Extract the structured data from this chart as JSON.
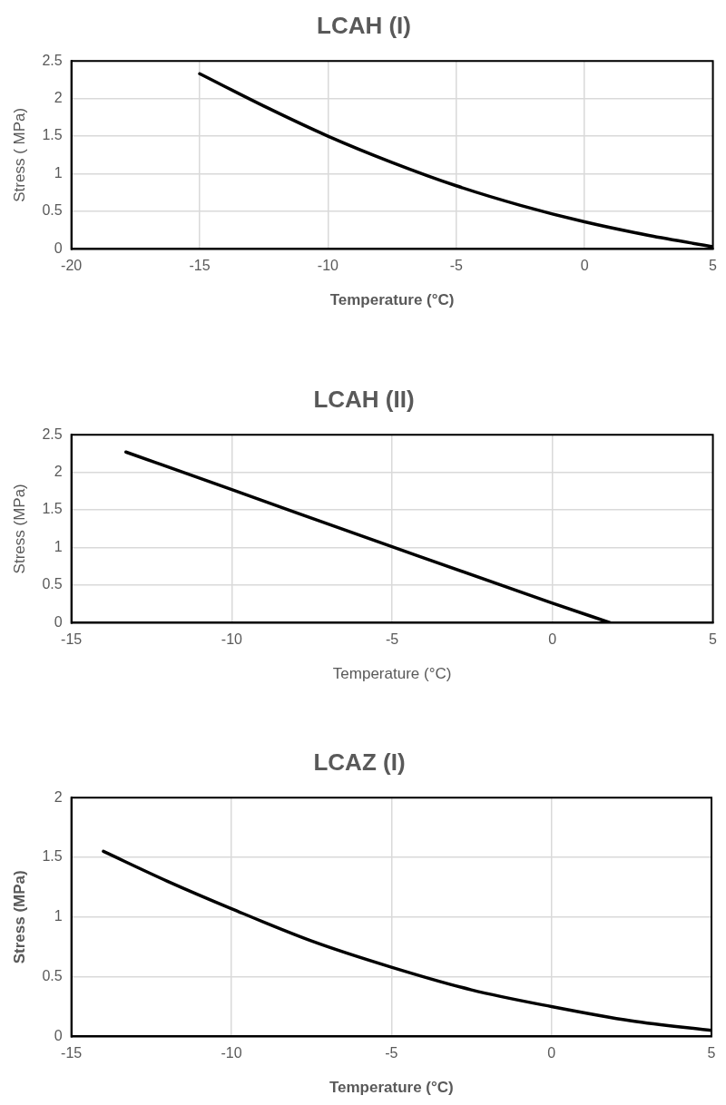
{
  "chart_data": [
    {
      "type": "line",
      "title": "LCAH (I)",
      "xlabel": "Temperature (°C)",
      "ylabel": "Stress ( MPa)",
      "xlim": [
        -20,
        5
      ],
      "xticks": [
        -20,
        -15,
        -10,
        -5,
        0,
        5
      ],
      "ylim": [
        0,
        2.5
      ],
      "yticks": [
        0,
        0.5,
        1,
        1.5,
        2,
        2.5
      ],
      "grid": true,
      "legend": false,
      "marker": "none",
      "line_style": "solid",
      "series": [
        {
          "color": "#000000",
          "x": [
            -15,
            -12.5,
            -10,
            -7.5,
            -5,
            -2.5,
            0,
            2.5,
            5
          ],
          "values": [
            2.33,
            1.9,
            1.5,
            1.15,
            0.84,
            0.58,
            0.36,
            0.18,
            0.03
          ]
        }
      ]
    },
    {
      "type": "line",
      "title": "LCAH (II)",
      "xlabel": "Temperature (°C)",
      "ylabel": "Stress (MPa)",
      "xlim": [
        -15,
        5
      ],
      "xticks": [
        -15,
        -10,
        -5,
        0,
        5
      ],
      "ylim": [
        0,
        2.5
      ],
      "yticks": [
        0,
        0.5,
        1,
        1.5,
        2,
        2.5
      ],
      "grid": true,
      "legend": false,
      "marker": "none",
      "line_style": "solid",
      "series": [
        {
          "color": "#000000",
          "x": [
            -13.3,
            -10,
            -5,
            0,
            1.8
          ],
          "values": [
            2.27,
            1.77,
            1.01,
            0.26,
            0
          ]
        }
      ]
    },
    {
      "type": "line",
      "title": "LCAZ (I)",
      "xlabel": "Temperature (°C)",
      "ylabel": "Stress (MPa)",
      "xlim": [
        -15,
        5
      ],
      "xticks": [
        -15,
        -10,
        -5,
        0,
        5
      ],
      "ylim": [
        0,
        2
      ],
      "yticks": [
        0,
        0.5,
        1,
        1.5,
        2
      ],
      "grid": true,
      "legend": false,
      "marker": "none",
      "line_style": "solid",
      "series": [
        {
          "color": "#000000",
          "x": [
            -14,
            -12,
            -10,
            -7.5,
            -5,
            -2.5,
            0,
            2.5,
            5
          ],
          "values": [
            1.55,
            1.3,
            1.07,
            0.8,
            0.58,
            0.39,
            0.25,
            0.13,
            0.05
          ]
        }
      ]
    }
  ]
}
